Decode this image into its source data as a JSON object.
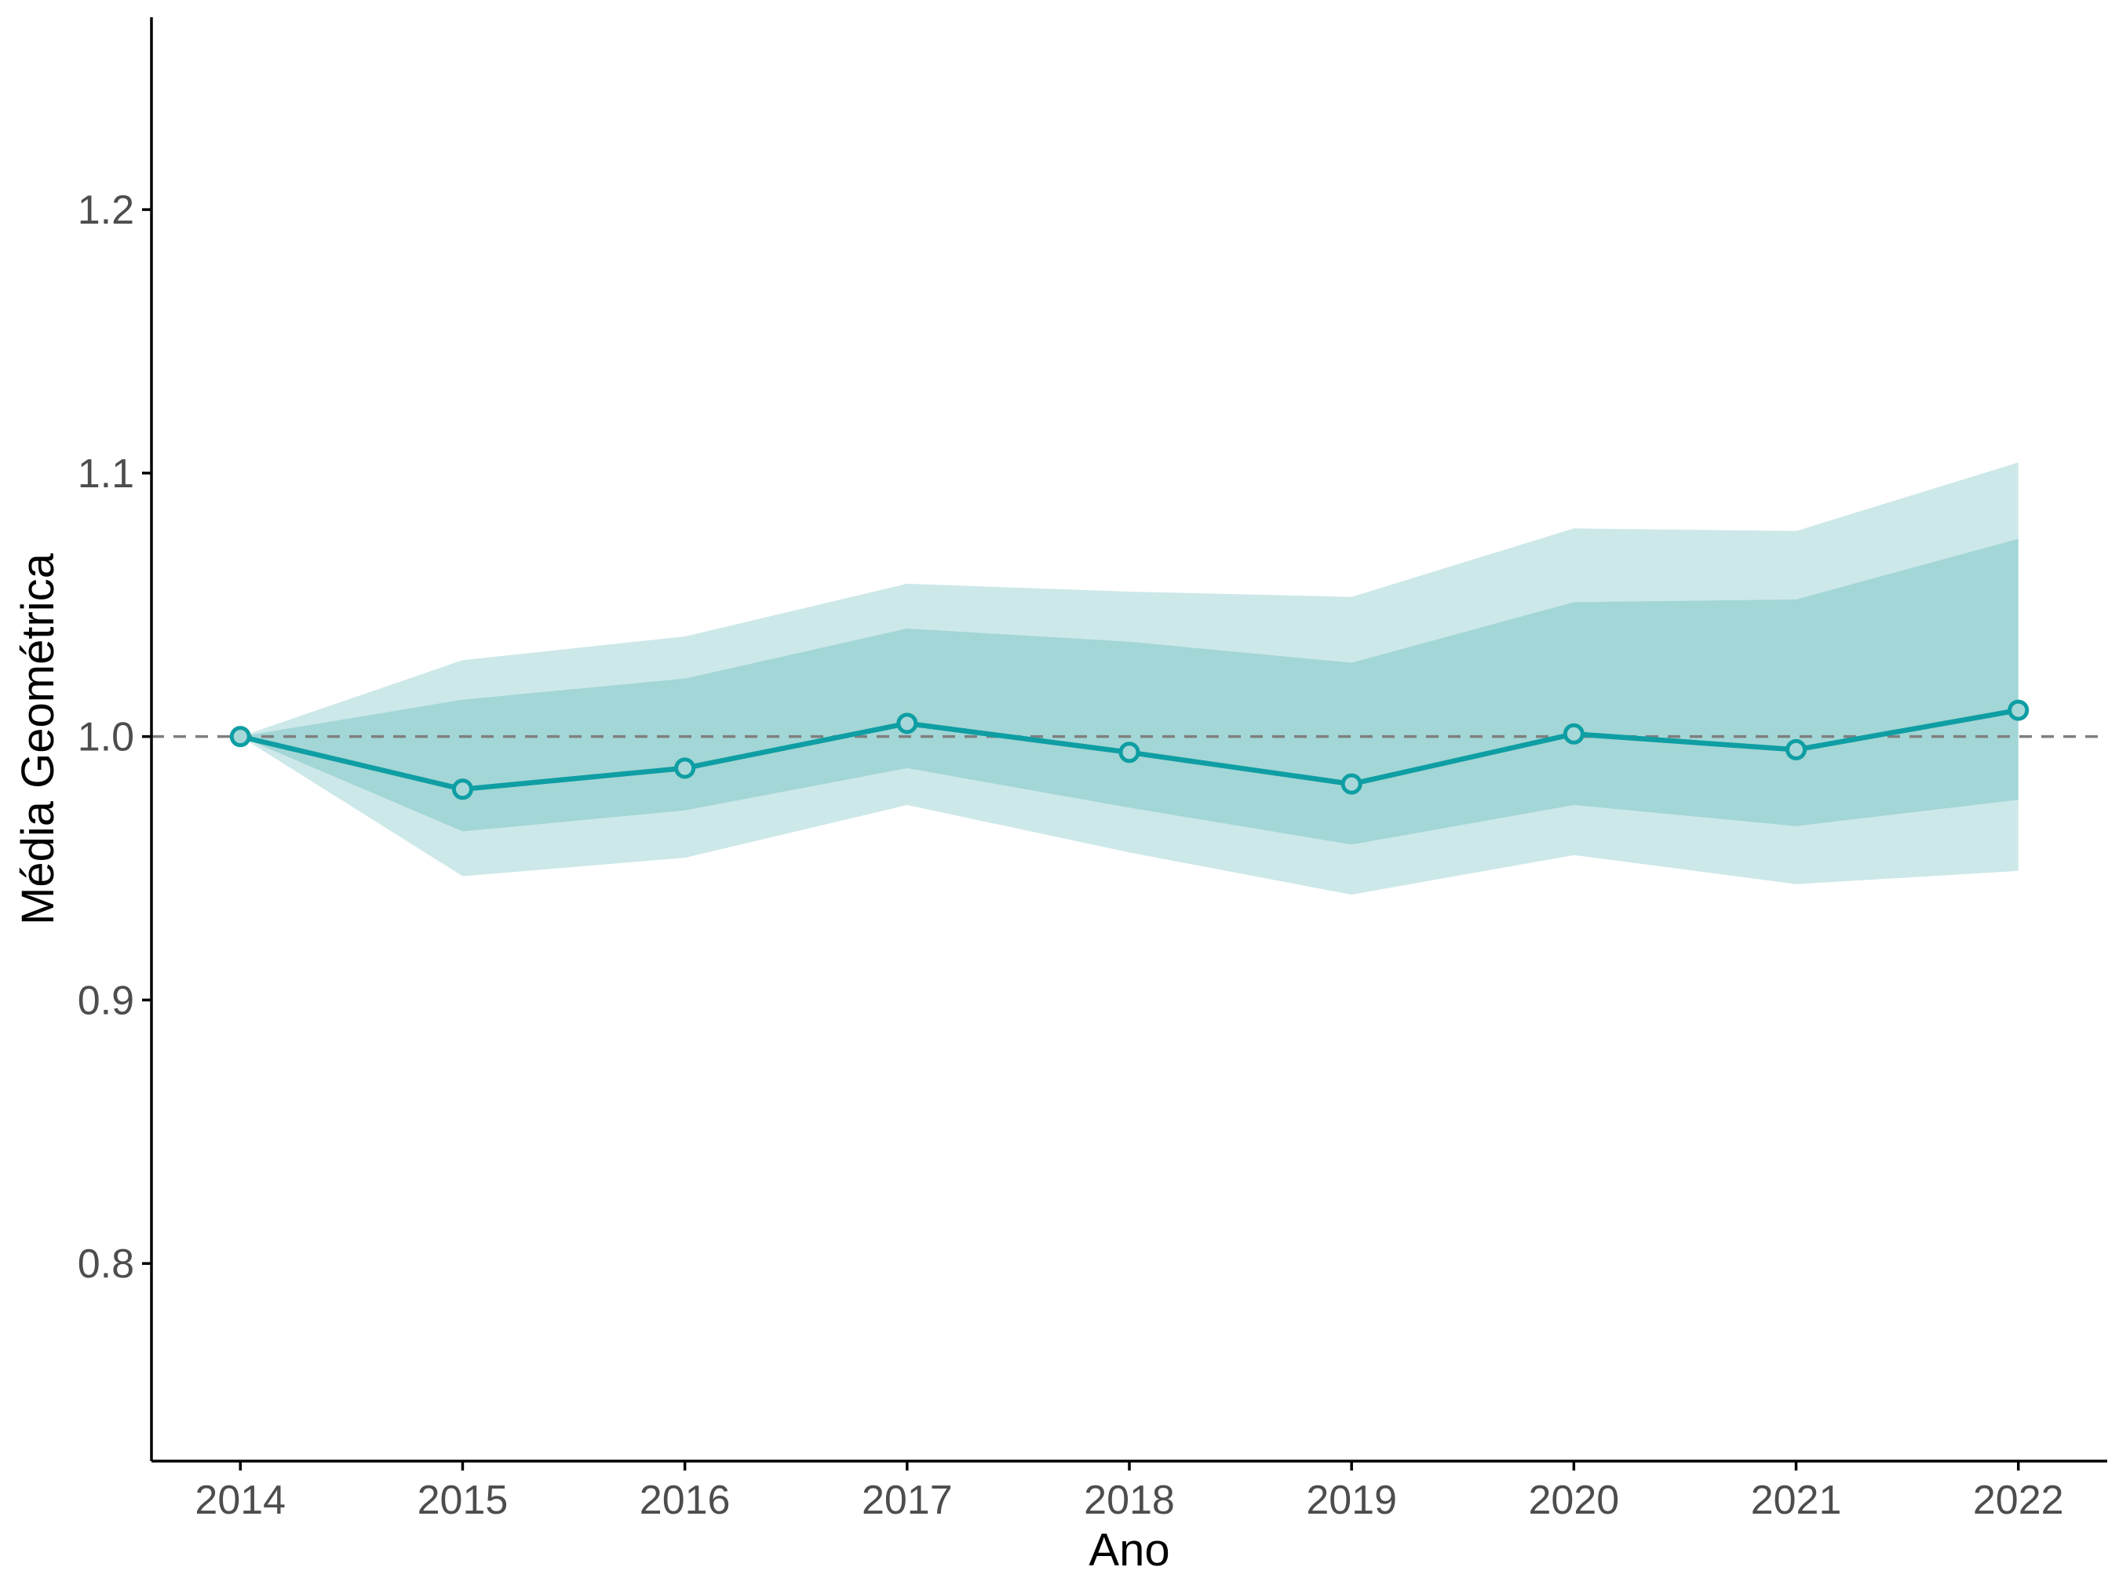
{
  "chart_data": {
    "type": "line",
    "title": "",
    "xlabel": "Ano",
    "ylabel": "Média Geométrica",
    "x": [
      2014,
      2015,
      2016,
      2017,
      2018,
      2019,
      2020,
      2021,
      2022
    ],
    "x_ticks": [
      "2014",
      "2015",
      "2016",
      "2017",
      "2018",
      "2019",
      "2020",
      "2021",
      "2022"
    ],
    "y_ticks": [
      "0.8",
      "0.9",
      "1.0",
      "1.1",
      "1.2"
    ],
    "y_tick_values": [
      0.8,
      0.9,
      1.0,
      1.1,
      1.2
    ],
    "ylim": [
      0.725,
      1.273
    ],
    "xlim": [
      2013.6,
      2022.4
    ],
    "reference_line": 1.0,
    "series": [
      {
        "values": [
          1.0,
          0.98,
          0.988,
          1.005,
          0.994,
          0.982,
          1.001,
          0.995,
          1.01
        ],
        "inner_band_lower": [
          1.0,
          0.964,
          0.972,
          0.988,
          0.973,
          0.959,
          0.974,
          0.966,
          0.976
        ],
        "inner_band_upper": [
          1.0,
          1.014,
          1.022,
          1.041,
          1.036,
          1.028,
          1.051,
          1.052,
          1.075
        ],
        "outer_band_lower": [
          1.0,
          0.947,
          0.954,
          0.974,
          0.956,
          0.94,
          0.955,
          0.944,
          0.949
        ],
        "outer_band_upper": [
          1.0,
          1.029,
          1.038,
          1.058,
          1.055,
          1.053,
          1.079,
          1.078,
          1.104
        ]
      }
    ],
    "colors": {
      "line": "#0e9ea3",
      "point_fill": "#a7d8d9",
      "inner_band": "#a3d6d6",
      "outer_band": "#cde8e9",
      "reference_line": "#7f7f7f"
    },
    "grid": false,
    "legend": "none"
  }
}
